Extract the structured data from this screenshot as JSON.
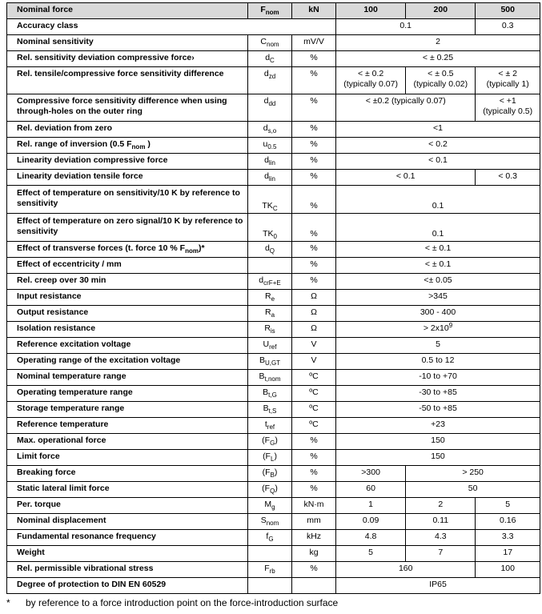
{
  "columns": [
    "100",
    "200",
    "500"
  ],
  "header": {
    "param": "Nominal force",
    "sym": "F",
    "sym_sub": "nom",
    "unit": "kN",
    "cells": [
      {
        "t": "100"
      },
      {
        "t": "200"
      },
      {
        "t": "500"
      }
    ]
  },
  "rows": [
    {
      "param": "Accuracy class",
      "paramspan": true,
      "cells": [
        {
          "t": "0.1",
          "span": 2
        },
        {
          "t": "0.3"
        }
      ]
    },
    {
      "param": "Nominal sensitivity",
      "sym": "C",
      "sym_sub": "nom",
      "unit": "mV/V",
      "cells": [
        {
          "t": "2",
          "span": 3
        }
      ]
    },
    {
      "param": "Rel. sensitivity deviation compressive force›",
      "sym": "d",
      "sym_sub": "C",
      "unit": "%",
      "cells": [
        {
          "t": "< ± 0.25",
          "span": 3
        }
      ]
    },
    {
      "param": "Rel. tensile/compressive force sensitivity difference",
      "sym": "d",
      "sym_sub": "zd",
      "unit": "%",
      "tall": true,
      "cells": [
        {
          "t": "< ± 0.2\n(typically 0.07)"
        },
        {
          "t": "< ± 0.5\n(typically 0.02)"
        },
        {
          "t": "< ± 2\n(typically 1)"
        }
      ]
    },
    {
      "param": "Compressive force sensitivity difference when using through-holes on the outer ring",
      "sym": "d",
      "sym_sub": "dd",
      "unit": "%",
      "tall": true,
      "cells": [
        {
          "t": "< ±0.2 (typically 0.07)",
          "span": 2
        },
        {
          "t": "< +1\n(typically 0.5)"
        }
      ]
    },
    {
      "param": "Rel. deviation from zero",
      "sym": "d",
      "sym_sub": "s,o",
      "unit": "%",
      "cells": [
        {
          "t": "<1",
          "span": 3
        }
      ]
    },
    {
      "param": "Rel. range of inversion  (0.5 F",
      "param_sub": "nom",
      "param_tail": " )",
      "sym": "u",
      "sym_sub": "0.5",
      "unit": "%",
      "cells": [
        {
          "t": "< 0.2",
          "span": 3
        }
      ]
    },
    {
      "param": "Linearity deviation compressive force",
      "sym": "d",
      "sym_sub": "lin",
      "unit": "%",
      "cells": [
        {
          "t": "< 0.1",
          "span": 3
        }
      ]
    },
    {
      "param": "Linearity deviation tensile force",
      "sym": "d",
      "sym_sub": "lin",
      "unit": "%",
      "cells": [
        {
          "t": "< 0.1",
          "span": 2
        },
        {
          "t": "< 0.3"
        }
      ]
    },
    {
      "param": "Effect of temperature on sensitivity/10 K by reference to sensitivity",
      "sym": "TK",
      "sym_sub": "C",
      "unit": "%",
      "two": true,
      "cells": [
        {
          "t": "0.1",
          "span": 3
        }
      ]
    },
    {
      "param": "Effect of temperature on zero signal/10 K by reference to sensitivity",
      "sym": "TK",
      "sym_sub": "0",
      "unit": "%",
      "two": true,
      "cells": [
        {
          "t": "0.1",
          "span": 3
        }
      ]
    },
    {
      "param": "Effect of transverse forces (t. force 10 % F",
      "param_sub": "nom",
      "param_tail": ")*",
      "sym": "d",
      "sym_sub": "Q",
      "unit": "%",
      "cells": [
        {
          "t": "< ± 0.1",
          "span": 3
        }
      ]
    },
    {
      "param": "Effect of eccentricity / mm",
      "sym": "",
      "unit": "%",
      "cells": [
        {
          "t": "< ± 0.1",
          "span": 3
        }
      ]
    },
    {
      "param": "Rel. creep over 30 min",
      "sym": "d",
      "sym_sub": "crF+E",
      "unit": "%",
      "cells": [
        {
          "t": "<± 0.05",
          "span": 3
        }
      ]
    },
    {
      "param": "Input resistance",
      "sym": "R",
      "sym_sub": "e",
      "unit": "Ω",
      "cells": [
        {
          "t": ">345",
          "span": 3
        }
      ]
    },
    {
      "param": "Output resistance",
      "sym": "R",
      "sym_sub": "a",
      "unit": "Ω",
      "cells": [
        {
          "t": "300 - 400",
          "span": 3
        }
      ]
    },
    {
      "param": "Isolation resistance",
      "sym": "R",
      "sym_sub": "is",
      "unit": "Ω",
      "cells": [
        {
          "t": "> 2x10",
          "sup": "9",
          "span": 3
        }
      ]
    },
    {
      "param": "Reference excitation voltage",
      "sym": "U",
      "sym_sub": "ref",
      "unit": "V",
      "cells": [
        {
          "t": "5",
          "span": 3
        }
      ]
    },
    {
      "param": "Operating range of the excitation voltage",
      "sym": "B",
      "sym_sub": "U,GT",
      "unit": "V",
      "cells": [
        {
          "t": "0.5 to 12",
          "span": 3
        }
      ]
    },
    {
      "param": "Nominal temperature range",
      "sym": "B",
      "sym_sub": "t,nom",
      "unit": "ºC",
      "cells": [
        {
          "t": "-10 to +70",
          "span": 3
        }
      ]
    },
    {
      "param": "Operating temperature range",
      "sym": "B",
      "sym_sub": "t,G",
      "unit": "ºC",
      "cells": [
        {
          "t": "-30 to +85",
          "span": 3
        }
      ]
    },
    {
      "param": "Storage temperature range",
      "sym": "B",
      "sym_sub": "t,S",
      "unit": "ºC",
      "cells": [
        {
          "t": "-50 to +85",
          "span": 3
        }
      ]
    },
    {
      "param": "Reference temperature",
      "sym": "t",
      "sym_sub": "ref",
      "unit": "ºC",
      "cells": [
        {
          "t": "+23",
          "span": 3
        }
      ]
    },
    {
      "param": "Max. operational force",
      "sym": "(F",
      "sym_sub": "G",
      "sym_tail": ")",
      "unit": "%",
      "cells": [
        {
          "t": "150",
          "span": 3
        }
      ]
    },
    {
      "param": "Limit force",
      "sym": "(F",
      "sym_sub": "L",
      "sym_tail": ")",
      "unit": "%",
      "cells": [
        {
          "t": "150",
          "span": 3
        }
      ]
    },
    {
      "param": "Breaking force",
      "sym": "(F",
      "sym_sub": "B",
      "sym_tail": ")",
      "unit": "%",
      "cells": [
        {
          "t": ">300"
        },
        {
          "t": "> 250",
          "span": 2
        }
      ]
    },
    {
      "param": "Static lateral limit force",
      "sym": "(F",
      "sym_sub": "Q",
      "sym_tail": ")",
      "unit": "%",
      "cells": [
        {
          "t": "60"
        },
        {
          "t": "50",
          "span": 2
        }
      ]
    },
    {
      "param": "Per. torque",
      "sym": "M",
      "sym_sub": "g",
      "unit": "kN·m",
      "cells": [
        {
          "t": "1"
        },
        {
          "t": "2"
        },
        {
          "t": "5"
        }
      ]
    },
    {
      "param": "Nominal displacement",
      "sym": "S",
      "sym_sub": "nom",
      "unit": "mm",
      "cells": [
        {
          "t": "0.09"
        },
        {
          "t": "0.11"
        },
        {
          "t": "0.16"
        }
      ]
    },
    {
      "param": "Fundamental resonance frequency",
      "sym": "f",
      "sym_sub": "G",
      "unit": "kHz",
      "cells": [
        {
          "t": "4.8"
        },
        {
          "t": "4.3"
        },
        {
          "t": "3.3"
        }
      ]
    },
    {
      "param": "Weight",
      "sym": "",
      "unit": "kg",
      "cells": [
        {
          "t": "5"
        },
        {
          "t": "7"
        },
        {
          "t": "17"
        }
      ]
    },
    {
      "param": "Rel. permissible vibrational stress",
      "sym": "F",
      "sym_sub": "rb",
      "unit": "%",
      "cells": [
        {
          "t": "160",
          "span": 2
        },
        {
          "t": "100"
        }
      ]
    },
    {
      "param": "Degree of protection to DIN EN 60529",
      "sym": "",
      "unit": "",
      "cells": [
        {
          "t": "IP65",
          "span": 3
        }
      ]
    }
  ],
  "footnote": {
    "mark": "*",
    "text": "by reference to a force introduction point on the force-introduction surface"
  }
}
